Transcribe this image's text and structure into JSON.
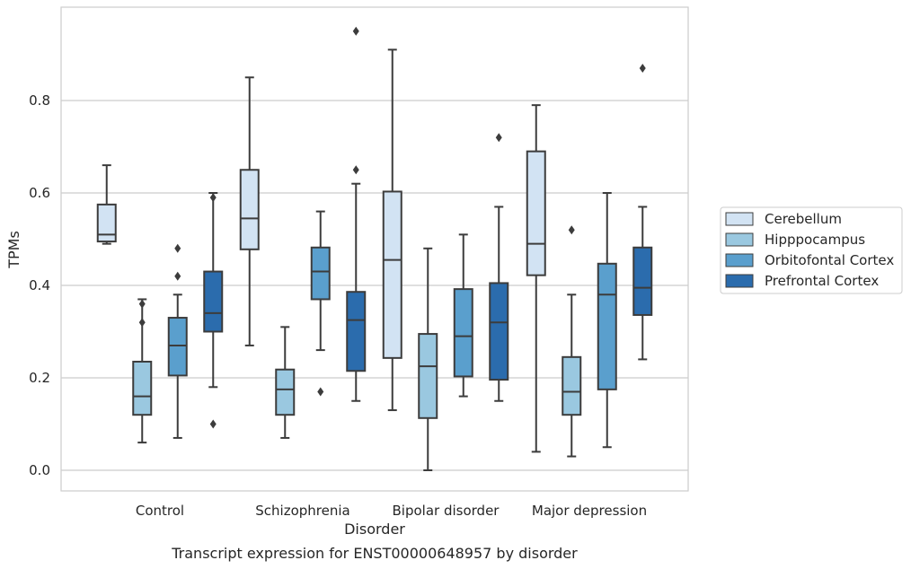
{
  "chart_data": {
    "type": "box",
    "caption": "Transcript expression for ENST00000648957 by disorder",
    "xlabel": "Disorder",
    "ylabel": "TPMs",
    "ylim": [
      -0.045,
      0.98
    ],
    "yticks": [
      0.0,
      0.2,
      0.4,
      0.6,
      0.8
    ],
    "ytick_labels": [
      "0.0",
      "0.2",
      "0.4",
      "0.6",
      "0.8"
    ],
    "grid": "horizontal",
    "legend_position": "right",
    "categories": [
      "Control",
      "Schizophrenia",
      "Bipolar disorder",
      "Major depression"
    ],
    "series": [
      {
        "name": "Cerebellum",
        "color": "#d2e3f3",
        "boxes": [
          {
            "whislo": 0.49,
            "q1": 0.495,
            "med": 0.51,
            "q3": 0.575,
            "whishi": 0.66,
            "fliers": []
          },
          {
            "whislo": 0.27,
            "q1": 0.478,
            "med": 0.545,
            "q3": 0.65,
            "whishi": 0.85,
            "fliers": []
          },
          {
            "whislo": 0.13,
            "q1": 0.243,
            "med": 0.455,
            "q3": 0.603,
            "whishi": 0.91,
            "fliers": []
          },
          {
            "whislo": 0.04,
            "q1": 0.422,
            "med": 0.49,
            "q3": 0.69,
            "whishi": 0.79,
            "fliers": []
          }
        ]
      },
      {
        "name": "Hipppocampus",
        "color": "#9ac8e0",
        "boxes": [
          {
            "whislo": 0.06,
            "q1": 0.12,
            "med": 0.16,
            "q3": 0.235,
            "whishi": 0.37,
            "fliers": [
              0.32,
              0.36
            ]
          },
          {
            "whislo": 0.07,
            "q1": 0.12,
            "med": 0.175,
            "q3": 0.218,
            "whishi": 0.31,
            "fliers": []
          },
          {
            "whislo": 0.0,
            "q1": 0.113,
            "med": 0.225,
            "q3": 0.295,
            "whishi": 0.48,
            "fliers": []
          },
          {
            "whislo": 0.03,
            "q1": 0.12,
            "med": 0.17,
            "q3": 0.245,
            "whishi": 0.38,
            "fliers": [
              0.52
            ]
          }
        ]
      },
      {
        "name": "Orbitofontal Cortex",
        "color": "#5a9fcd",
        "boxes": [
          {
            "whislo": 0.07,
            "q1": 0.205,
            "med": 0.27,
            "q3": 0.33,
            "whishi": 0.38,
            "fliers": [
              0.42,
              0.48
            ]
          },
          {
            "whislo": 0.26,
            "q1": 0.37,
            "med": 0.43,
            "q3": 0.482,
            "whishi": 0.56,
            "fliers": [
              0.17
            ]
          },
          {
            "whislo": 0.16,
            "q1": 0.203,
            "med": 0.29,
            "q3": 0.392,
            "whishi": 0.51,
            "fliers": []
          },
          {
            "whislo": 0.05,
            "q1": 0.175,
            "med": 0.38,
            "q3": 0.447,
            "whishi": 0.6,
            "fliers": []
          }
        ]
      },
      {
        "name": "Prefrontal Cortex",
        "color": "#2b6cad",
        "boxes": [
          {
            "whislo": 0.18,
            "q1": 0.3,
            "med": 0.34,
            "q3": 0.43,
            "whishi": 0.6,
            "fliers": [
              0.59,
              0.1
            ]
          },
          {
            "whislo": 0.15,
            "q1": 0.215,
            "med": 0.325,
            "q3": 0.386,
            "whishi": 0.62,
            "fliers": [
              0.95,
              0.65
            ]
          },
          {
            "whislo": 0.15,
            "q1": 0.196,
            "med": 0.32,
            "q3": 0.405,
            "whishi": 0.57,
            "fliers": [
              0.72
            ]
          },
          {
            "whislo": 0.24,
            "q1": 0.336,
            "med": 0.395,
            "q3": 0.482,
            "whishi": 0.57,
            "fliers": [
              0.87
            ]
          }
        ]
      }
    ]
  }
}
